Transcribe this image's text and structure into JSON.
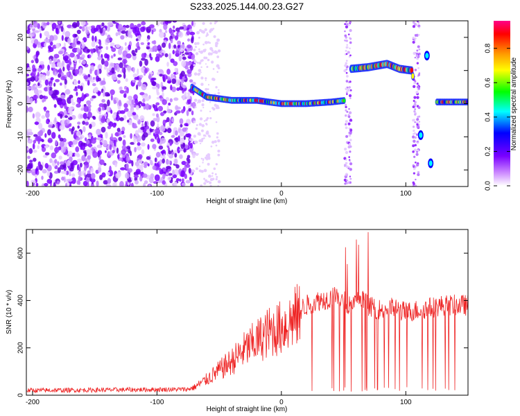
{
  "figure_title": "S233.2025.144.00.23.G27",
  "chart_data": [
    {
      "type": "heatmap",
      "xlabel": "Height of straight line (km)",
      "ylabel": "Frequency (Hz)",
      "xlim": [
        -205,
        150
      ],
      "ylim": [
        -25,
        25
      ],
      "xticks": [
        -200,
        -100,
        0,
        100
      ],
      "yticks": [
        -20,
        -10,
        0,
        10,
        20
      ],
      "colorbar": {
        "label": "Normalized spectral amplitude",
        "range": [
          0,
          0.96
        ],
        "ticks": [
          "0.0",
          "0.2",
          "0.4",
          "0.6",
          "0.8"
        ],
        "colormap": [
          "#ffffff",
          "#cc88ff",
          "#7a00ff",
          "#0000ff",
          "#00ffff",
          "#00ff00",
          "#ffff00",
          "#ff9900",
          "#ff0000",
          "#ff0088"
        ]
      },
      "signal_track": [
        {
          "x": -72,
          "y": 5
        },
        {
          "x": -60,
          "y": 2
        },
        {
          "x": -40,
          "y": 1
        },
        {
          "x": -20,
          "y": 1
        },
        {
          "x": 0,
          "y": 0
        },
        {
          "x": 20,
          "y": 0
        },
        {
          "x": 40,
          "y": 0.5
        },
        {
          "x": 52,
          "y": 1
        },
        {
          "x": 56,
          "y": 10.5
        },
        {
          "x": 70,
          "y": 11
        },
        {
          "x": 85,
          "y": 12
        },
        {
          "x": 95,
          "y": 10.5
        },
        {
          "x": 105,
          "y": 10
        },
        {
          "x": 112,
          "y": -9.5
        },
        {
          "x": 117,
          "y": 14.5
        },
        {
          "x": 120,
          "y": -18
        },
        {
          "x": 125,
          "y": 0.5
        },
        {
          "x": 150,
          "y": 0.5
        }
      ],
      "noise_region_x": [
        -205,
        -70
      ]
    },
    {
      "type": "line",
      "xlabel": "Height of straight line (km)",
      "ylabel": "SNR (10 * v/v)",
      "xlim": [
        -205,
        150
      ],
      "ylim": [
        0,
        700
      ],
      "xticks": [
        -200,
        -100,
        0,
        100
      ],
      "yticks": [
        0,
        200,
        400,
        600
      ],
      "color": "#ee2222",
      "series": [
        {
          "x": [
            -205,
            -150,
            -100,
            -75,
            -70,
            -60,
            -50,
            -40,
            -30,
            -20,
            -10,
            0,
            10,
            20,
            30,
            40,
            45,
            50,
            55,
            60,
            65,
            70,
            80,
            90,
            100,
            110,
            120,
            130,
            140,
            150
          ],
          "values": [
            20,
            22,
            24,
            25,
            35,
            70,
            110,
            150,
            200,
            240,
            280,
            300,
            340,
            380,
            400,
            410,
            420,
            400,
            380,
            390,
            400,
            380,
            360,
            370,
            350,
            360,
            370,
            380,
            380,
            380
          ]
        }
      ]
    }
  ]
}
